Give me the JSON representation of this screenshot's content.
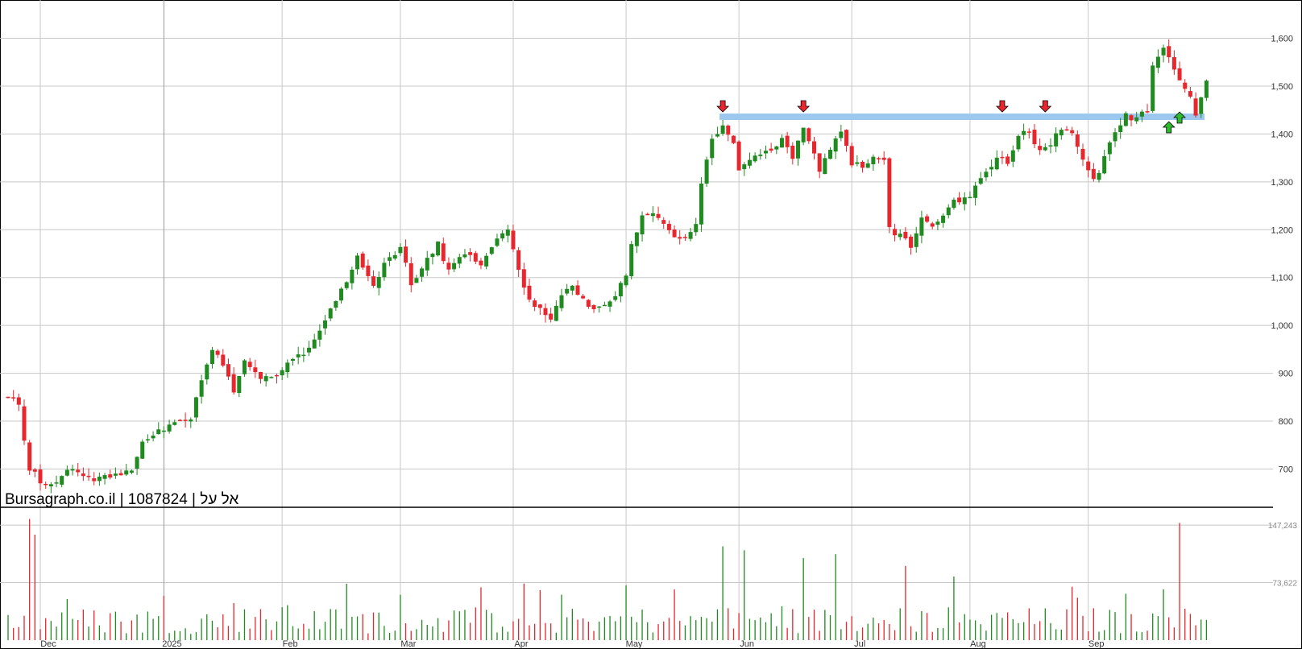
{
  "watermark": "Bursagraph.co.il | 1087824 | אל על",
  "colors": {
    "up": "#1f8a1f",
    "down": "#e8262d",
    "grid": "#c8c8c8",
    "resistance": "#9cc8f0",
    "signal_down": "#e8262d",
    "signal_up": "#2dbb2d"
  },
  "chart_data": [
    {
      "type": "candlestick",
      "title": "",
      "ylim": [
        620,
        1680
      ],
      "yticks": [
        700,
        800,
        900,
        1000,
        1100,
        1200,
        1300,
        1400,
        1500,
        1600
      ],
      "ytick_labels": [
        "700",
        "800",
        "900",
        "1,000",
        "1,100",
        "1,200",
        "1,300",
        "1,400",
        "1,500",
        "1,600"
      ],
      "x_labels": [
        "Dec",
        "2025",
        "Feb",
        "Mar",
        "Apr",
        "May",
        "Jun",
        "Jul",
        "Aug",
        "Sep"
      ],
      "x_label_bar_index": [
        6,
        29,
        51,
        73,
        94,
        115,
        136,
        157,
        179,
        201
      ],
      "grid": true,
      "resistance_level": 1436,
      "resistance_from_bar": 133,
      "signals": [
        {
          "type": "down",
          "bar": 133
        },
        {
          "type": "down",
          "bar": 148
        },
        {
          "type": "down",
          "bar": 185
        },
        {
          "type": "down",
          "bar": 193
        },
        {
          "type": "up",
          "bar": 216
        },
        {
          "type": "up",
          "bar": 218
        }
      ],
      "waypoints": [
        [
          0,
          845
        ],
        [
          2,
          840
        ],
        [
          3,
          760
        ],
        [
          4,
          700
        ],
        [
          5,
          690
        ],
        [
          6,
          675
        ],
        [
          9,
          670
        ],
        [
          11,
          700
        ],
        [
          13,
          690
        ],
        [
          16,
          680
        ],
        [
          20,
          685
        ],
        [
          23,
          700
        ],
        [
          25,
          760
        ],
        [
          28,
          780
        ],
        [
          31,
          800
        ],
        [
          34,
          810
        ],
        [
          36,
          880
        ],
        [
          38,
          950
        ],
        [
          40,
          920
        ],
        [
          42,
          860
        ],
        [
          44,
          930
        ],
        [
          47,
          890
        ],
        [
          50,
          895
        ],
        [
          53,
          935
        ],
        [
          56,
          950
        ],
        [
          59,
          1010
        ],
        [
          62,
          1070
        ],
        [
          65,
          1140
        ],
        [
          68,
          1080
        ],
        [
          70,
          1130
        ],
        [
          73,
          1160
        ],
        [
          75,
          1090
        ],
        [
          77,
          1120
        ],
        [
          80,
          1170
        ],
        [
          82,
          1110
        ],
        [
          85,
          1150
        ],
        [
          88,
          1130
        ],
        [
          91,
          1180
        ],
        [
          93,
          1200
        ],
        [
          95,
          1110
        ],
        [
          97,
          1060
        ],
        [
          99,
          1030
        ],
        [
          101,
          1010
        ],
        [
          103,
          1070
        ],
        [
          105,
          1080
        ],
        [
          107,
          1060
        ],
        [
          109,
          1030
        ],
        [
          111,
          1040
        ],
        [
          113,
          1060
        ],
        [
          115,
          1110
        ],
        [
          116,
          1170
        ],
        [
          118,
          1230
        ],
        [
          120,
          1230
        ],
        [
          122,
          1210
        ],
        [
          124,
          1190
        ],
        [
          126,
          1180
        ],
        [
          128,
          1210
        ],
        [
          129,
          1290
        ],
        [
          131,
          1390
        ],
        [
          133,
          1420
        ],
        [
          135,
          1380
        ],
        [
          136,
          1320
        ],
        [
          138,
          1340
        ],
        [
          140,
          1360
        ],
        [
          142,
          1370
        ],
        [
          144,
          1390
        ],
        [
          146,
          1350
        ],
        [
          148,
          1410
        ],
        [
          150,
          1360
        ],
        [
          151,
          1320
        ],
        [
          153,
          1370
        ],
        [
          155,
          1400
        ],
        [
          157,
          1340
        ],
        [
          159,
          1330
        ],
        [
          161,
          1350
        ],
        [
          163,
          1340
        ],
        [
          164,
          1200
        ],
        [
          166,
          1190
        ],
        [
          168,
          1160
        ],
        [
          170,
          1220
        ],
        [
          173,
          1210
        ],
        [
          176,
          1260
        ],
        [
          179,
          1270
        ],
        [
          182,
          1320
        ],
        [
          184,
          1350
        ],
        [
          186,
          1340
        ],
        [
          188,
          1400
        ],
        [
          190,
          1410
        ],
        [
          192,
          1360
        ],
        [
          194,
          1380
        ],
        [
          196,
          1410
        ],
        [
          198,
          1400
        ],
        [
          200,
          1350
        ],
        [
          202,
          1300
        ],
        [
          204,
          1350
        ],
        [
          206,
          1410
        ],
        [
          208,
          1440
        ],
        [
          210,
          1430
        ],
        [
          212,
          1450
        ],
        [
          213,
          1540
        ],
        [
          215,
          1580
        ],
        [
          217,
          1540
        ],
        [
          219,
          1490
        ],
        [
          220,
          1480
        ],
        [
          221,
          1440
        ],
        [
          222,
          1480
        ],
        [
          223,
          1510
        ]
      ]
    },
    {
      "type": "bar",
      "title": "",
      "ylim": [
        0,
        170000
      ],
      "yticks": [
        73622,
        147243
      ],
      "ytick_labels": [
        "73,622",
        "147,243"
      ],
      "peaks": [
        [
          4,
          155000
        ],
        [
          5,
          135000
        ],
        [
          115,
          70000
        ],
        [
          133,
          120000
        ],
        [
          137,
          115000
        ],
        [
          148,
          105000
        ],
        [
          154,
          110000
        ],
        [
          167,
          95000
        ],
        [
          218,
          150000
        ]
      ]
    }
  ]
}
